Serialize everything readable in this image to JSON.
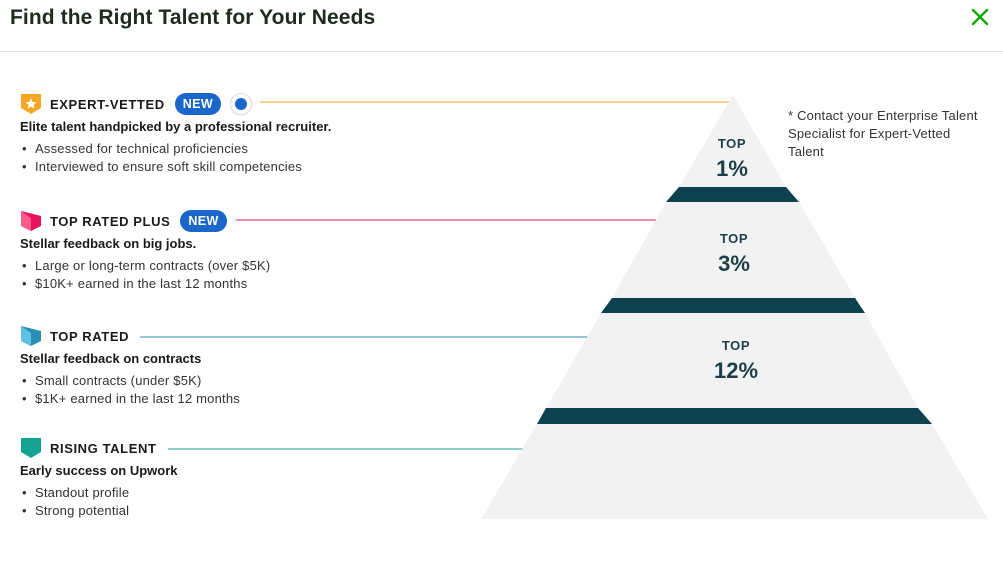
{
  "header": {
    "title": "Find the Right Talent for Your Needs",
    "close_icon": "close-icon"
  },
  "colors": {
    "expert": "#f6a623",
    "top_rated_plus": "#e8135c",
    "top_rated": "#2a8fb5",
    "rising": "#14a393",
    "pill": "#1a66c9",
    "band": "#0e4150",
    "tier_fill": "#f2f2f2"
  },
  "tiers": [
    {
      "name": "EXPERT-VETTED",
      "new": "NEW",
      "subtitle": "Elite talent handpicked by a professional recruiter.",
      "points": [
        "Assessed for technical proficiencies",
        "Interviewed to ensure soft skill competencies"
      ],
      "icon": "expert-vetted-badge-icon"
    },
    {
      "name": "TOP RATED PLUS",
      "new": "NEW",
      "subtitle": "Stellar feedback on big jobs.",
      "points": [
        "Large or long-term contracts (over $5K)",
        "$10K+ earned in the last 12 months"
      ],
      "icon": "top-rated-plus-badge-icon"
    },
    {
      "name": "TOP RATED",
      "subtitle": "Stellar feedback on contracts",
      "points": [
        "Small contracts (under $5K)",
        "$1K+ earned in the last 12 months"
      ],
      "icon": "top-rated-badge-icon"
    },
    {
      "name": "RISING TALENT",
      "subtitle": "Early success on Upwork",
      "points": [
        "Standout profile",
        "Strong potential"
      ],
      "icon": "rising-talent-badge-icon"
    }
  ],
  "pyramid": [
    {
      "top": "TOP",
      "value": "1%"
    },
    {
      "top": "TOP",
      "value": "3%"
    },
    {
      "top": "TOP",
      "value": "12%"
    }
  ],
  "note": "* Contact your Enterprise Talent Specialist for Expert-Vetted Talent"
}
